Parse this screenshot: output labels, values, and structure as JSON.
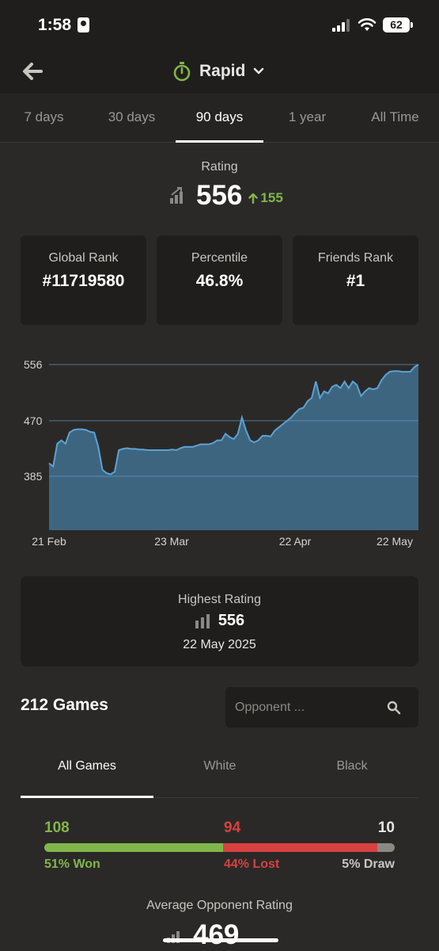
{
  "status": {
    "time": "1:58",
    "battery": "62"
  },
  "header": {
    "title": "Rapid",
    "back_icon": "arrow-left-icon",
    "mode_icon": "stopwatch-icon",
    "accent": "#81b64c"
  },
  "tabs": [
    {
      "label": "7 days"
    },
    {
      "label": "30 days"
    },
    {
      "label": "90 days",
      "active": true
    },
    {
      "label": "1 year"
    },
    {
      "label": "All Time"
    }
  ],
  "rating": {
    "label": "Rating",
    "value": "556",
    "change": "155"
  },
  "stats": [
    {
      "title": "Global Rank",
      "value": "#11719580"
    },
    {
      "title": "Percentile",
      "value": "46.8%"
    },
    {
      "title": "Friends Rank",
      "value": "#1"
    }
  ],
  "chart_data": {
    "type": "area",
    "y_ticks": [
      "556",
      "470",
      "385"
    ],
    "x_ticks": [
      "21 Feb",
      "23 Mar",
      "22 Apr",
      "22 May"
    ],
    "ylim": [
      385,
      556
    ],
    "colors": {
      "fill": "#3e6580",
      "line": "#5aa3d6"
    },
    "x": [
      0,
      1,
      2,
      3,
      4,
      5,
      6,
      7,
      8,
      9,
      10,
      11,
      12,
      13,
      14,
      15,
      16,
      17,
      18,
      19,
      20,
      21,
      22,
      23,
      24,
      25,
      26,
      27,
      28,
      29,
      30,
      31,
      32,
      33,
      34,
      35,
      36,
      37,
      38,
      39,
      40,
      41,
      42,
      43,
      44,
      45,
      46,
      47,
      48,
      49,
      50,
      51,
      52,
      53,
      54,
      55,
      56,
      57,
      58,
      59,
      60,
      61,
      62,
      63,
      64,
      65,
      66,
      67,
      68,
      69,
      70,
      71,
      72,
      73,
      74,
      75,
      76,
      77,
      78,
      79,
      80,
      81,
      82,
      83,
      84,
      85,
      86,
      87,
      88,
      89,
      90
    ],
    "values": [
      405,
      400,
      435,
      440,
      435,
      452,
      456,
      457,
      457,
      456,
      453,
      452,
      430,
      395,
      390,
      388,
      392,
      425,
      427,
      428,
      427,
      427,
      426,
      426,
      425,
      425,
      425,
      425,
      425,
      425,
      426,
      425,
      428,
      430,
      430,
      430,
      432,
      434,
      434,
      434,
      436,
      440,
      440,
      450,
      445,
      442,
      450,
      475,
      455,
      440,
      437,
      440,
      447,
      447,
      446,
      455,
      460,
      465,
      470,
      475,
      482,
      488,
      490,
      500,
      505,
      530,
      505,
      515,
      512,
      522,
      525,
      520,
      530,
      520,
      530,
      525,
      508,
      515,
      520,
      518,
      520,
      532,
      540,
      545,
      546,
      546,
      545,
      545,
      545,
      552,
      556
    ]
  },
  "highest": {
    "title": "Highest Rating",
    "value": "556",
    "date": "22 May 2025"
  },
  "games": {
    "count": "212 Games",
    "search_placeholder": "Opponent ...",
    "tabs": [
      {
        "label": "All Games",
        "active": true
      },
      {
        "label": "White"
      },
      {
        "label": "Black"
      }
    ],
    "won": {
      "count": "108",
      "pct": "51% Won",
      "fraction": 0.51,
      "color": "#81b64c"
    },
    "lost": {
      "count": "94",
      "pct": "44% Lost",
      "fraction": 0.44,
      "color": "#d84141"
    },
    "draw": {
      "count": "10",
      "pct": "5% Draw",
      "fraction": 0.05,
      "color": "#8c8985"
    }
  },
  "avg": {
    "label": "Average Opponent Rating",
    "value": "469"
  }
}
